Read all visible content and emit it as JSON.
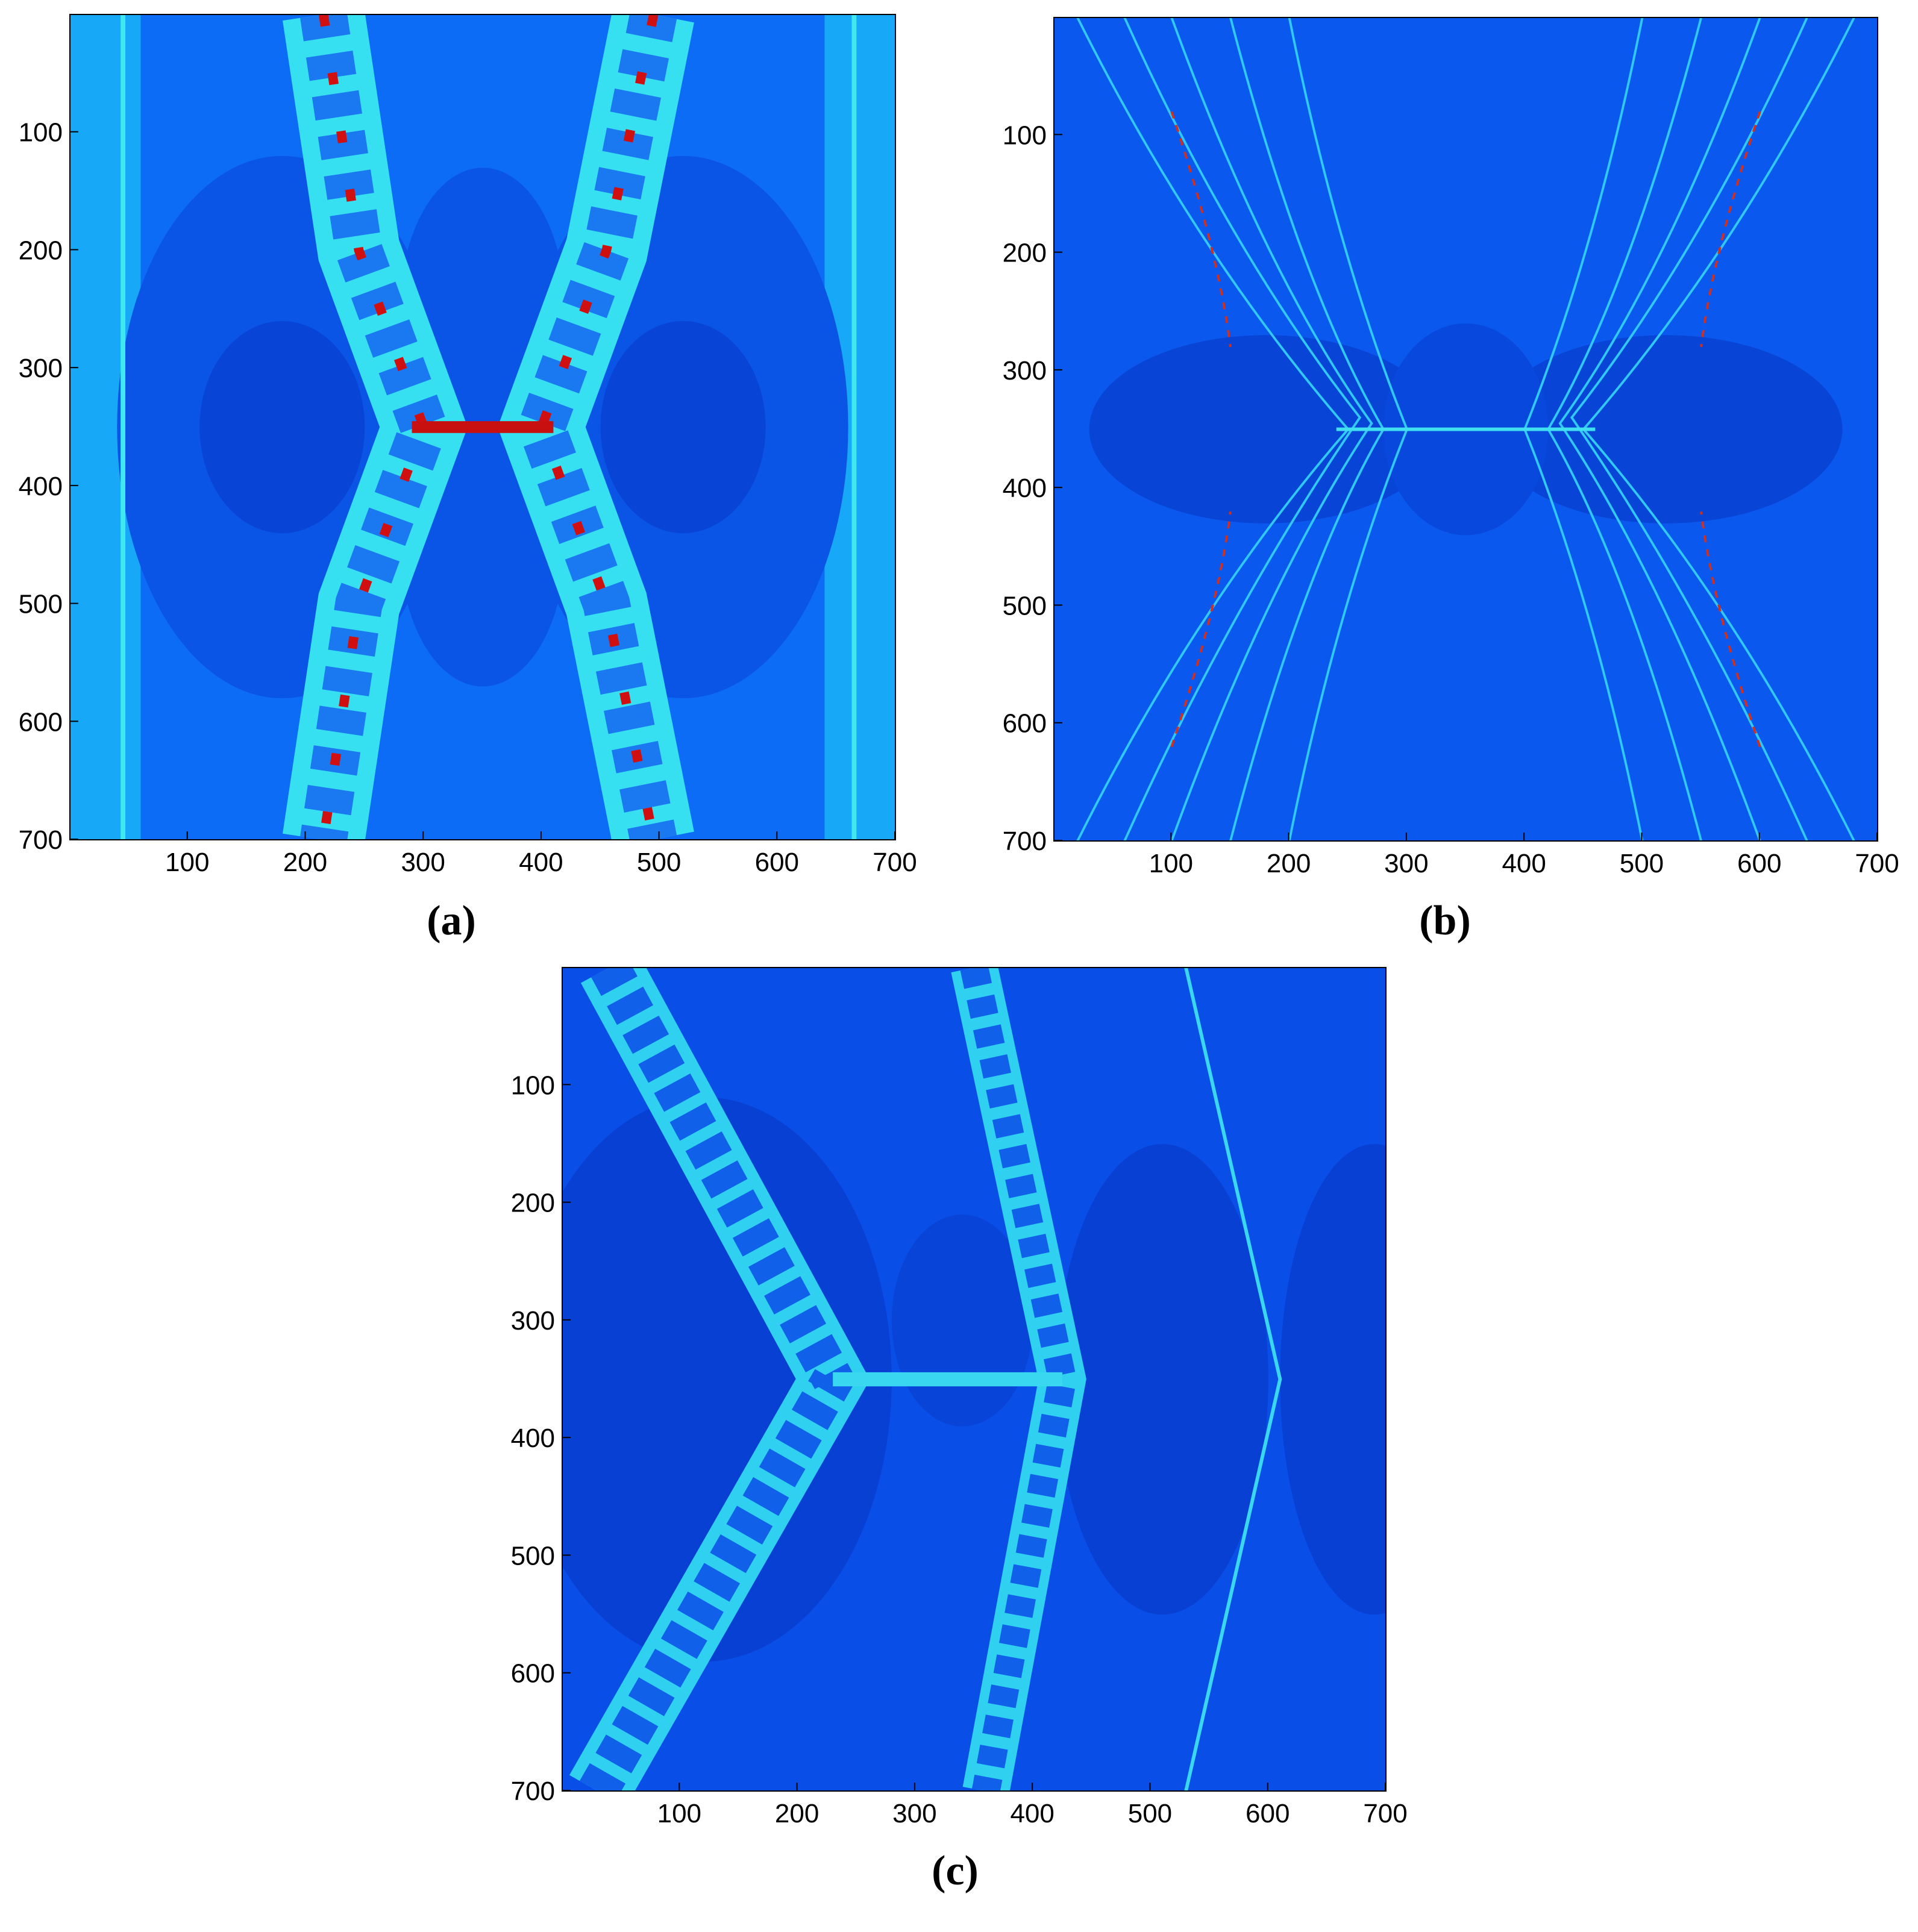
{
  "chart_data": [
    {
      "type": "image",
      "caption": "(a)",
      "xlim": [
        0.5,
        700.5
      ],
      "ylim": [
        0.5,
        700.5
      ],
      "y_inverted": true,
      "xticks": [
        100,
        200,
        300,
        400,
        500,
        600,
        700
      ],
      "yticks": [
        100,
        200,
        300,
        400,
        500,
        600,
        700
      ]
    },
    {
      "type": "image",
      "caption": "(b)",
      "xlim": [
        0.5,
        700.5
      ],
      "ylim": [
        0.5,
        700.5
      ],
      "y_inverted": true,
      "xticks": [
        100,
        200,
        300,
        400,
        500,
        600,
        700
      ],
      "yticks": [
        100,
        200,
        300,
        400,
        500,
        600,
        700
      ]
    },
    {
      "type": "image",
      "caption": "(c)",
      "xlim": [
        0.5,
        700.5
      ],
      "ylim": [
        0.5,
        700.5
      ],
      "y_inverted": true,
      "xticks": [
        100,
        200,
        300,
        400,
        500,
        600,
        700
      ],
      "yticks": [
        100,
        200,
        300,
        400,
        500,
        600,
        700
      ]
    }
  ]
}
